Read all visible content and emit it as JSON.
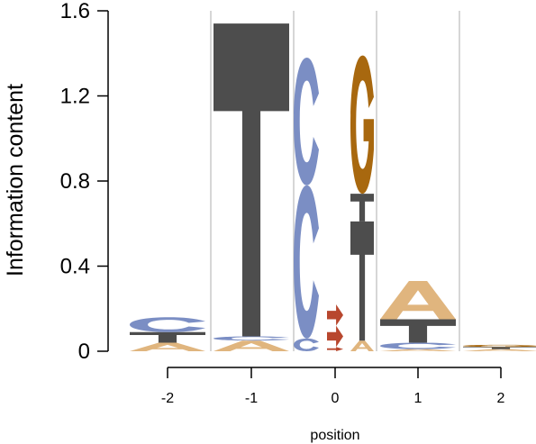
{
  "chart_data": {
    "type": "sequence-logo",
    "ylabel": "Information content",
    "xlabel": "position",
    "ylim": [
      0,
      1.6
    ],
    "yticks": [
      "0",
      "0.4",
      "0.8",
      "1.2",
      "1.6"
    ],
    "positions": [
      "-2",
      "-1",
      "0",
      "1",
      "2"
    ],
    "colors": {
      "A": "#E0B57E",
      "C": "#7B8EC4",
      "G": "#A8680F",
      "T": "#4D4D4D",
      "methyl": "#B8472E",
      "grid": "#C8C8C8"
    },
    "columns": [
      {
        "position": "-2",
        "letters": [
          {
            "letter": "A",
            "ic": 0.04
          },
          {
            "letter": "T",
            "ic": 0.05
          },
          {
            "letter": "C",
            "ic": 0.07
          }
        ]
      },
      {
        "position": "-1",
        "letters": [
          {
            "letter": "A",
            "ic": 0.05
          },
          {
            "letter": "C",
            "ic": 0.02
          },
          {
            "letter": "T",
            "ic": 1.47
          }
        ]
      },
      {
        "position": "0",
        "sub": [
          {
            "strand": "left",
            "letters": [
              {
                "letter": "C",
                "ic": 0.06
              },
              {
                "letter": "C",
                "ic": 0.72
              },
              {
                "letter": "C",
                "ic": 0.6
              }
            ]
          },
          {
            "strand": "mid",
            "letters": [
              {
                "letter": "m",
                "ic": 0.02
              },
              {
                "letter": "m",
                "ic": 0.1
              },
              {
                "letter": "m",
                "ic": 0.1
              }
            ]
          },
          {
            "strand": "right",
            "letters": [
              {
                "letter": "A",
                "ic": 0.05
              },
              {
                "letter": "T",
                "ic": 0.56
              },
              {
                "letter": "T",
                "ic": 0.13
              },
              {
                "letter": "G",
                "ic": 0.65
              }
            ]
          }
        ]
      },
      {
        "position": "1",
        "letters": [
          {
            "letter": "A",
            "ic": 0.01
          },
          {
            "letter": "C",
            "ic": 0.03
          },
          {
            "letter": "T",
            "ic": 0.11
          },
          {
            "letter": "A",
            "ic": 0.18
          }
        ]
      },
      {
        "position": "2",
        "letters": [
          {
            "letter": "A",
            "ic": 0.01
          },
          {
            "letter": "T",
            "ic": 0.01
          },
          {
            "letter": "G",
            "ic": 0.01
          }
        ]
      }
    ]
  }
}
